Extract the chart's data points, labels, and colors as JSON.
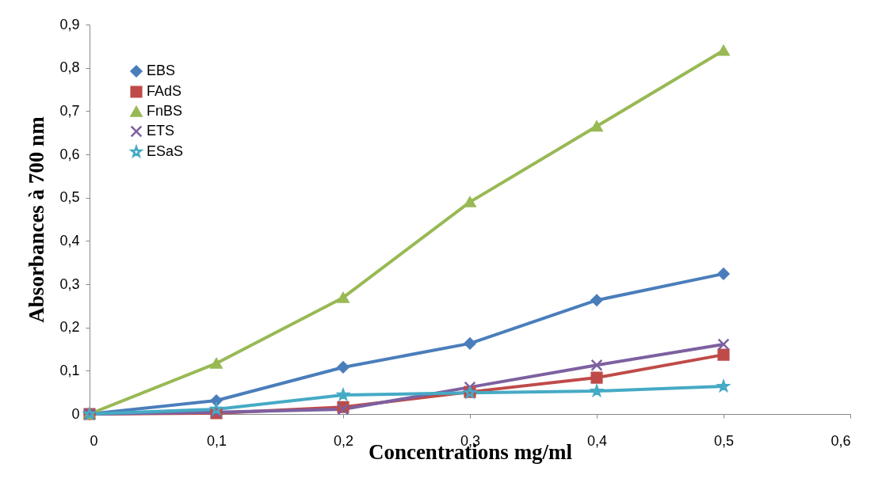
{
  "chart_data": {
    "type": "line",
    "xlabel": "Concentrations mg/ml",
    "ylabel": "Absorbances à 700 nm",
    "x": [
      0,
      0.1,
      0.2,
      0.3,
      0.4,
      0.5
    ],
    "series": [
      {
        "name": "EBS",
        "color": "#4a7ebb",
        "marker": "diamond",
        "values": [
          0,
          0.031,
          0.108,
          0.163,
          0.263,
          0.324
        ]
      },
      {
        "name": "FAdS",
        "color": "#be4b48",
        "marker": "square",
        "values": [
          0,
          0.002,
          0.016,
          0.051,
          0.084,
          0.137
        ]
      },
      {
        "name": "FnBS",
        "color": "#98b954",
        "marker": "triangle",
        "values": [
          0,
          0.117,
          0.269,
          0.49,
          0.665,
          0.84
        ]
      },
      {
        "name": "ETS",
        "color": "#7d60a0",
        "marker": "cross",
        "values": [
          0,
          0.004,
          0.011,
          0.062,
          0.113,
          0.161
        ]
      },
      {
        "name": "ESaS",
        "color": "#46aac5",
        "marker": "star",
        "values": [
          0,
          0.011,
          0.044,
          0.049,
          0.053,
          0.064
        ]
      }
    ],
    "xlim": [
      0,
      0.6
    ],
    "xticks": [
      {
        "value": 0,
        "label": "0"
      },
      {
        "value": 0.1,
        "label": "0,1"
      },
      {
        "value": 0.2,
        "label": "0,2"
      },
      {
        "value": 0.3,
        "label": "0,3"
      },
      {
        "value": 0.4,
        "label": "0,4"
      },
      {
        "value": 0.5,
        "label": "0,5"
      },
      {
        "value": 0.6,
        "label": "0,6"
      }
    ],
    "ylim": [
      0,
      0.9
    ],
    "yticks": [
      {
        "value": 0,
        "label": "0"
      },
      {
        "value": 0.1,
        "label": "0,1"
      },
      {
        "value": 0.2,
        "label": "0,2"
      },
      {
        "value": 0.3,
        "label": "0,3"
      },
      {
        "value": 0.4,
        "label": "0,4"
      },
      {
        "value": 0.5,
        "label": "0,5"
      },
      {
        "value": 0.6,
        "label": "0,6"
      },
      {
        "value": 0.7,
        "label": "0,7"
      },
      {
        "value": 0.8,
        "label": "0,8"
      },
      {
        "value": 0.9,
        "label": "0,9"
      }
    ],
    "grid": false,
    "legend": "top left",
    "line_style": "solid"
  }
}
